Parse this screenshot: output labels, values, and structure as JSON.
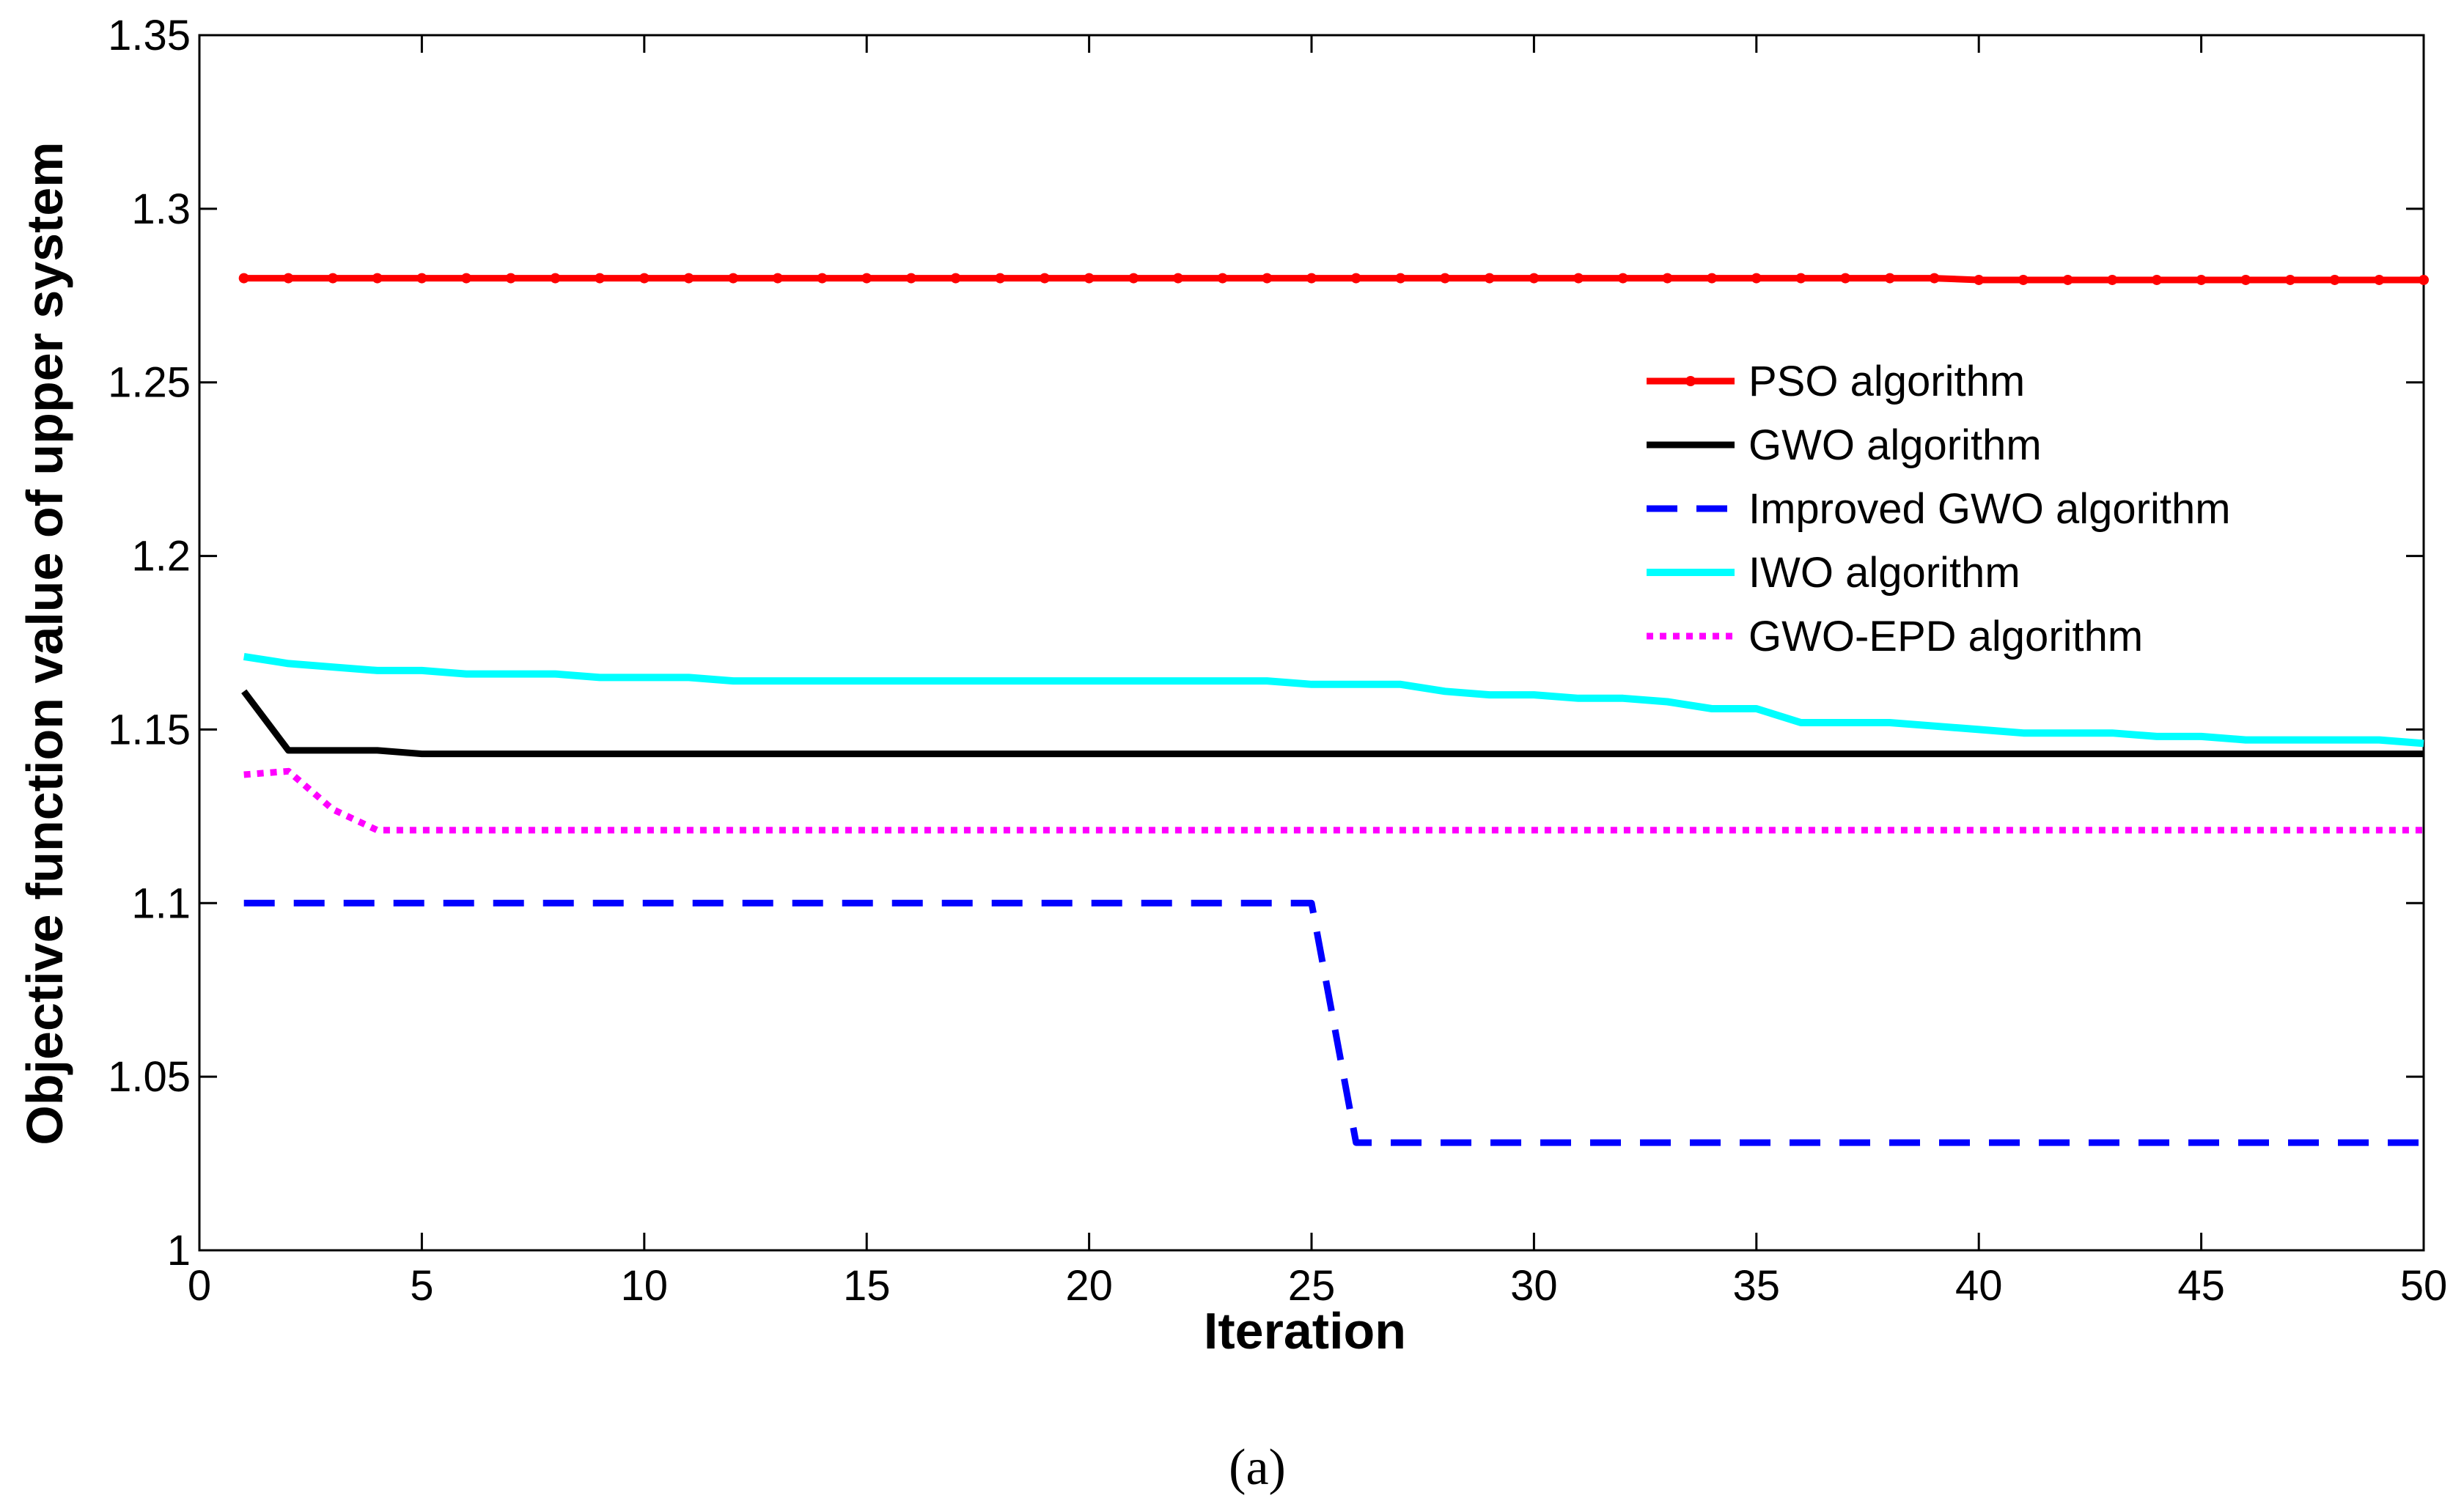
{
  "chart_data": {
    "type": "line",
    "title": "",
    "xlabel": "Iteration",
    "ylabel": "Objective function value of upper system",
    "xlim": [
      0,
      50
    ],
    "ylim": [
      1,
      1.35
    ],
    "xticks": [
      0,
      5,
      10,
      15,
      20,
      25,
      30,
      35,
      40,
      45,
      50
    ],
    "yticks": [
      1,
      1.05,
      1.1,
      1.15,
      1.2,
      1.25,
      1.3,
      1.35
    ],
    "ytick_labels": [
      "1",
      "1.05",
      "1.1",
      "1.15",
      "1.2",
      "1.25",
      "1.3",
      "1.35"
    ],
    "grid": false,
    "legend_position": "top-right",
    "x": [
      1,
      2,
      3,
      4,
      5,
      6,
      7,
      8,
      9,
      10,
      11,
      12,
      13,
      14,
      15,
      16,
      17,
      18,
      19,
      20,
      21,
      22,
      23,
      24,
      25,
      26,
      27,
      28,
      29,
      30,
      31,
      32,
      33,
      34,
      35,
      36,
      37,
      38,
      39,
      40,
      41,
      42,
      43,
      44,
      45,
      46,
      47,
      48,
      49,
      50
    ],
    "series": [
      {
        "name": "PSO algorithm",
        "color": "#ff0000",
        "style": "solid-dot",
        "values": [
          1.28,
          1.28,
          1.28,
          1.28,
          1.28,
          1.28,
          1.28,
          1.28,
          1.28,
          1.28,
          1.28,
          1.28,
          1.28,
          1.28,
          1.28,
          1.28,
          1.28,
          1.28,
          1.28,
          1.28,
          1.28,
          1.28,
          1.28,
          1.28,
          1.28,
          1.28,
          1.28,
          1.28,
          1.28,
          1.28,
          1.28,
          1.28,
          1.28,
          1.28,
          1.28,
          1.28,
          1.28,
          1.28,
          1.28,
          1.2795,
          1.2795,
          1.2795,
          1.2795,
          1.2795,
          1.2795,
          1.2795,
          1.2795,
          1.2795,
          1.2795,
          1.2795
        ]
      },
      {
        "name": "GWO algorithm",
        "color": "#000000",
        "style": "solid",
        "values": [
          1.161,
          1.144,
          1.144,
          1.144,
          1.143,
          1.143,
          1.143,
          1.143,
          1.143,
          1.143,
          1.143,
          1.143,
          1.143,
          1.143,
          1.143,
          1.143,
          1.143,
          1.143,
          1.143,
          1.143,
          1.143,
          1.143,
          1.143,
          1.143,
          1.143,
          1.143,
          1.143,
          1.143,
          1.143,
          1.143,
          1.143,
          1.143,
          1.143,
          1.143,
          1.143,
          1.143,
          1.143,
          1.143,
          1.143,
          1.143,
          1.143,
          1.143,
          1.143,
          1.143,
          1.143,
          1.143,
          1.143,
          1.143,
          1.143,
          1.143
        ]
      },
      {
        "name": "Improved GWO algorithm",
        "color": "#0000ff",
        "style": "dashed",
        "values": [
          1.1,
          1.1,
          1.1,
          1.1,
          1.1,
          1.1,
          1.1,
          1.1,
          1.1,
          1.1,
          1.1,
          1.1,
          1.1,
          1.1,
          1.1,
          1.1,
          1.1,
          1.1,
          1.1,
          1.1,
          1.1,
          1.1,
          1.1,
          1.1,
          1.1,
          1.031,
          1.031,
          1.031,
          1.031,
          1.031,
          1.031,
          1.031,
          1.031,
          1.031,
          1.031,
          1.031,
          1.031,
          1.031,
          1.031,
          1.031,
          1.031,
          1.031,
          1.031,
          1.031,
          1.031,
          1.031,
          1.031,
          1.031,
          1.031,
          1.031
        ]
      },
      {
        "name": "IWO algorithm",
        "color": "#00ffff",
        "style": "solid",
        "values": [
          1.171,
          1.169,
          1.168,
          1.167,
          1.167,
          1.166,
          1.166,
          1.166,
          1.165,
          1.165,
          1.165,
          1.164,
          1.164,
          1.164,
          1.164,
          1.164,
          1.164,
          1.164,
          1.164,
          1.164,
          1.164,
          1.164,
          1.164,
          1.164,
          1.163,
          1.163,
          1.163,
          1.161,
          1.16,
          1.16,
          1.159,
          1.159,
          1.158,
          1.156,
          1.156,
          1.152,
          1.152,
          1.152,
          1.151,
          1.15,
          1.149,
          1.149,
          1.149,
          1.148,
          1.148,
          1.147,
          1.147,
          1.147,
          1.147,
          1.146
        ]
      },
      {
        "name": "GWO-EPD algorithm",
        "color": "#ff00ff",
        "style": "dotted",
        "values": [
          1.137,
          1.138,
          1.127,
          1.121,
          1.121,
          1.121,
          1.121,
          1.121,
          1.121,
          1.121,
          1.121,
          1.121,
          1.121,
          1.121,
          1.121,
          1.121,
          1.121,
          1.121,
          1.121,
          1.121,
          1.121,
          1.121,
          1.121,
          1.121,
          1.121,
          1.121,
          1.121,
          1.121,
          1.121,
          1.121,
          1.121,
          1.121,
          1.121,
          1.121,
          1.121,
          1.121,
          1.121,
          1.121,
          1.121,
          1.121,
          1.121,
          1.121,
          1.121,
          1.121,
          1.121,
          1.121,
          1.121,
          1.121,
          1.121,
          1.121
        ]
      }
    ]
  },
  "caption": "(a)"
}
